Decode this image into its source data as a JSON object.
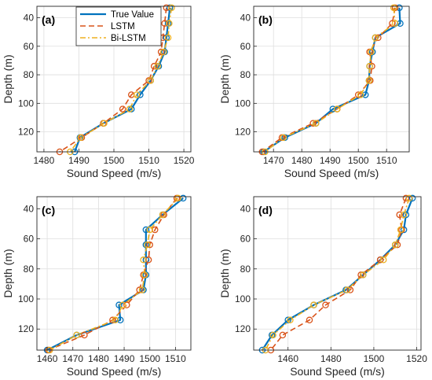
{
  "colors": {
    "true_value": "#0072BD",
    "lstm": "#D95319",
    "bilstm": "#EDB120",
    "grid": "#dedede",
    "axes": "#262626"
  },
  "legend": {
    "entries": [
      "True Value",
      "LSTM",
      "Bi-LSTM"
    ]
  },
  "chart_data": [
    {
      "type": "line",
      "panel_label": "(a)",
      "xlabel": "Sound Speed (m/s)",
      "ylabel": "Depth (m)",
      "xlim": [
        1478,
        1522
      ],
      "ylim": [
        134,
        32
      ],
      "xticks": [
        1480,
        1490,
        1500,
        1510,
        1520
      ],
      "yticks": [
        40,
        60,
        80,
        100,
        120
      ],
      "y_reversed": true,
      "grid": true,
      "legend_position": "top-left",
      "y": [
        33,
        44,
        54,
        64,
        74,
        84,
        94,
        104,
        114,
        124,
        134
      ],
      "series": [
        {
          "name": "True Value",
          "values": [
            1516.0,
            1515.5,
            1515.0,
            1514.5,
            1512.8,
            1510.5,
            1507.5,
            1505.0,
            1497.0,
            1490.3,
            1488.8
          ]
        },
        {
          "name": "LSTM",
          "values": [
            1515.0,
            1514.5,
            1514.0,
            1513.5,
            1511.5,
            1510.0,
            1505.0,
            1502.5,
            1497.0,
            1490.8,
            1484.5
          ]
        },
        {
          "name": "Bi-LSTM",
          "values": [
            1516.5,
            1515.8,
            1515.5,
            1514.2,
            1512.5,
            1510.5,
            1506.5,
            1504.5,
            1497.2,
            1490.5,
            1487.5
          ]
        }
      ]
    },
    {
      "type": "line",
      "panel_label": "(b)",
      "xlabel": "Sound Speed (m/s)",
      "ylabel": "Depth (m)",
      "xlim": [
        1463,
        1518
      ],
      "ylim": [
        134,
        32
      ],
      "xticks": [
        1470,
        1480,
        1490,
        1500,
        1510
      ],
      "yticks": [
        40,
        60,
        80,
        100,
        120
      ],
      "y_reversed": true,
      "grid": true,
      "legend_position": "none",
      "y": [
        33,
        44,
        54,
        64,
        74,
        84,
        94,
        104,
        114,
        124,
        134
      ],
      "series": [
        {
          "name": "True Value",
          "values": [
            1514.5,
            1514.8,
            1506.0,
            1505.0,
            1504.0,
            1503.8,
            1502.5,
            1491.0,
            1485.0,
            1474.0,
            1466.5
          ]
        },
        {
          "name": "LSTM",
          "values": [
            1513.0,
            1512.0,
            1507.0,
            1504.0,
            1504.8,
            1504.2,
            1500.0,
            1492.5,
            1484.0,
            1473.0,
            1466.0
          ]
        },
        {
          "name": "Bi-LSTM",
          "values": [
            1512.5,
            1513.0,
            1506.0,
            1504.5,
            1504.0,
            1503.8,
            1500.8,
            1492.5,
            1485.0,
            1473.5,
            1467.0
          ]
        }
      ]
    },
    {
      "type": "line",
      "panel_label": "(c)",
      "xlabel": "Sound Speed (m/s)",
      "ylabel": "Depth (m)",
      "xlim": [
        1456,
        1516
      ],
      "ylim": [
        134,
        32
      ],
      "xticks": [
        1460,
        1470,
        1480,
        1490,
        1500,
        1510
      ],
      "yticks": [
        40,
        60,
        80,
        100,
        120
      ],
      "y_reversed": true,
      "grid": true,
      "legend_position": "none",
      "y": [
        33,
        44,
        54,
        64,
        74,
        84,
        94,
        104,
        114,
        124,
        134
      ],
      "series": [
        {
          "name": "True Value",
          "values": [
            1513.0,
            1505.0,
            1498.5,
            1498.5,
            1498.5,
            1498.5,
            1497.5,
            1488.0,
            1488.5,
            1471.5,
            1460.0
          ]
        },
        {
          "name": "LSTM",
          "values": [
            1510.5,
            1505.5,
            1502.0,
            1500.0,
            1499.5,
            1497.5,
            1496.0,
            1491.0,
            1485.5,
            1474.5,
            1460.5
          ]
        },
        {
          "name": "Bi-LSTM",
          "values": [
            1511.0,
            1505.0,
            1500.0,
            1499.0,
            1497.5,
            1498.0,
            1497.0,
            1489.5,
            1486.5,
            1471.5,
            1461.0
          ]
        }
      ]
    },
    {
      "type": "line",
      "panel_label": "(d)",
      "xlabel": "Sound Speed (m/s)",
      "ylabel": "Depth (m)",
      "xlim": [
        1444,
        1522
      ],
      "ylim": [
        134,
        32
      ],
      "xticks": [
        1460,
        1480,
        1500,
        1520
      ],
      "yticks": [
        40,
        60,
        80,
        100,
        120
      ],
      "y_reversed": true,
      "grid": true,
      "legend_position": "none",
      "y": [
        33,
        44,
        54,
        64,
        74,
        84,
        94,
        104,
        114,
        124,
        134
      ],
      "series": [
        {
          "name": "True Value",
          "values": [
            1518.0,
            1515.0,
            1514.0,
            1510.0,
            1503.0,
            1495.0,
            1487.0,
            1472.0,
            1460.0,
            1452.5,
            1448.0
          ]
        },
        {
          "name": "LSTM",
          "values": [
            1515.0,
            1512.0,
            1513.0,
            1511.0,
            1503.0,
            1494.0,
            1489.0,
            1477.5,
            1470.0,
            1457.5,
            1452.0
          ]
        },
        {
          "name": "Bi-LSTM",
          "values": [
            1516.5,
            1514.0,
            1512.5,
            1510.0,
            1504.5,
            1495.0,
            1487.5,
            1472.0,
            1461.0,
            1453.0,
            1449.5
          ]
        }
      ]
    }
  ]
}
